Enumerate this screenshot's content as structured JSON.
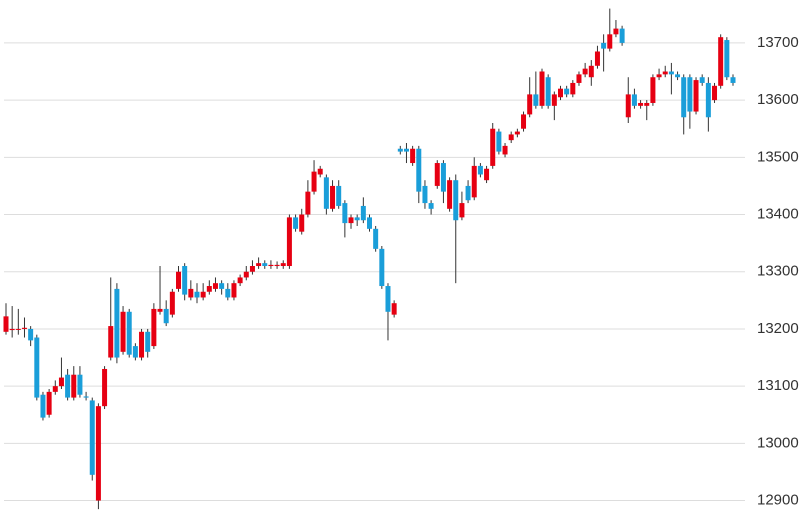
{
  "chart_data": {
    "type": "candlestick",
    "open": [
      13195,
      13198,
      13200,
      13200,
      13200,
      13185,
      13085,
      13050,
      13090,
      13100,
      13120,
      13080,
      13120,
      13082,
      13075,
      12900,
      13065,
      13150,
      13270,
      13160,
      13230,
      13170,
      13150,
      13195,
      13170,
      13230,
      13235,
      13225,
      13270,
      13310,
      13255,
      13265,
      13255,
      13265,
      13270,
      13280,
      13270,
      13255,
      13280,
      13290,
      13300,
      13310,
      13315,
      13310,
      13310,
      13310,
      13310,
      13395,
      13370,
      13400,
      13440,
      13470,
      13465,
      13410,
      13450,
      13420,
      13385,
      13395,
      13415,
      13395,
      13375,
      13340,
      13275,
      13225,
      13515,
      13515,
      13490,
      13515,
      13450,
      13420,
      13450,
      13490,
      13410,
      13460,
      13395,
      13450,
      13430,
      13485,
      13460,
      13485,
      13545,
      13505,
      13530,
      13540,
      13550,
      13575,
      13610,
      13590,
      13640,
      13590,
      13605,
      13620,
      13610,
      13630,
      13645,
      13640,
      13660,
      13700,
      13690,
      13715,
      13725,
      13570,
      13610,
      13590,
      13590,
      13595,
      13640,
      13645,
      13650,
      13645,
      13640,
      13640,
      13580,
      13640,
      13630,
      13600,
      13625,
      13705,
      13640
    ],
    "high": [
      13245,
      13240,
      13235,
      13220,
      13205,
      13190,
      13090,
      13095,
      13110,
      13150,
      13130,
      13135,
      13135,
      13090,
      13080,
      13070,
      13135,
      13290,
      13280,
      13240,
      13235,
      13175,
      13200,
      13200,
      13245,
      13310,
      13250,
      13270,
      13310,
      13315,
      13285,
      13280,
      13280,
      13285,
      13290,
      13285,
      13280,
      13285,
      13295,
      13310,
      13320,
      13325,
      13320,
      13320,
      13318,
      13320,
      13400,
      13400,
      13410,
      13460,
      13495,
      13485,
      13470,
      13460,
      13460,
      13425,
      13400,
      13400,
      13430,
      13400,
      13380,
      13345,
      13280,
      13250,
      13520,
      13525,
      13520,
      13520,
      13460,
      13425,
      13495,
      13495,
      13465,
      13470,
      13440,
      13460,
      13500,
      13490,
      13485,
      13560,
      13550,
      13525,
      13545,
      13550,
      13580,
      13640,
      13650,
      13655,
      13645,
      13615,
      13625,
      13625,
      13635,
      13650,
      13665,
      13670,
      13695,
      13715,
      13760,
      13740,
      13730,
      13640,
      13620,
      13600,
      13600,
      13645,
      13655,
      13660,
      13665,
      13650,
      13645,
      13645,
      13640,
      13645,
      13640,
      13630,
      13715,
      13710,
      13645
    ],
    "low": [
      13190,
      13185,
      13190,
      13185,
      13170,
      13075,
      13040,
      13045,
      13085,
      13095,
      13075,
      13075,
      13080,
      13075,
      12935,
      12885,
      13060,
      13145,
      13140,
      13155,
      13150,
      13145,
      13145,
      13150,
      13165,
      13225,
      13205,
      13220,
      13265,
      13250,
      13250,
      13245,
      13250,
      13260,
      13265,
      13260,
      13250,
      13250,
      13275,
      13285,
      13295,
      13305,
      13305,
      13305,
      13305,
      13305,
      13305,
      13370,
      13365,
      13395,
      13435,
      13465,
      13400,
      13405,
      13410,
      13360,
      13375,
      13380,
      13385,
      13370,
      13335,
      13270,
      13180,
      13220,
      13505,
      13490,
      13485,
      13420,
      13410,
      13400,
      13445,
      13420,
      13405,
      13280,
      13390,
      13420,
      13425,
      13465,
      13455,
      13480,
      13505,
      13500,
      13525,
      13535,
      13545,
      13570,
      13585,
      13585,
      13585,
      13565,
      13600,
      13605,
      13605,
      13625,
      13640,
      13625,
      13655,
      13650,
      13685,
      13710,
      13695,
      13560,
      13585,
      13585,
      13565,
      13590,
      13635,
      13640,
      13610,
      13635,
      13540,
      13550,
      13575,
      13625,
      13545,
      13595,
      13620,
      13635,
      13625
    ],
    "close": [
      13222,
      13200,
      13200,
      13202,
      13180,
      13080,
      13045,
      13090,
      13100,
      13115,
      13080,
      13120,
      13085,
      13080,
      12945,
      13065,
      13130,
      13205,
      13150,
      13230,
      13155,
      13150,
      13195,
      13160,
      13235,
      13235,
      13210,
      13265,
      13300,
      13260,
      13270,
      13255,
      13265,
      13275,
      13280,
      13270,
      13255,
      13280,
      13290,
      13300,
      13310,
      13315,
      13310,
      13312,
      13312,
      13315,
      13395,
      13375,
      13400,
      13440,
      13475,
      13480,
      13410,
      13450,
      13415,
      13385,
      13395,
      13390,
      13390,
      13375,
      13340,
      13275,
      13230,
      13245,
      13510,
      13510,
      13515,
      13440,
      13420,
      13410,
      13490,
      13440,
      13460,
      13390,
      13420,
      13425,
      13485,
      13470,
      13480,
      13550,
      13510,
      13520,
      13540,
      13545,
      13575,
      13610,
      13590,
      13650,
      13590,
      13610,
      13620,
      13610,
      13630,
      13645,
      13655,
      13660,
      13685,
      13690,
      13715,
      13725,
      13700,
      13610,
      13590,
      13595,
      13595,
      13640,
      13645,
      13650,
      13645,
      13640,
      13570,
      13580,
      13635,
      13630,
      13570,
      13625,
      13710,
      13640,
      13630
    ],
    "up_color": "#e60012",
    "down_color": "#1a9ed9",
    "ylim": [
      12880,
      13775
    ],
    "yticks": [
      12900,
      13000,
      13100,
      13200,
      13300,
      13400,
      13500,
      13600,
      13700
    ],
    "grid": true
  }
}
